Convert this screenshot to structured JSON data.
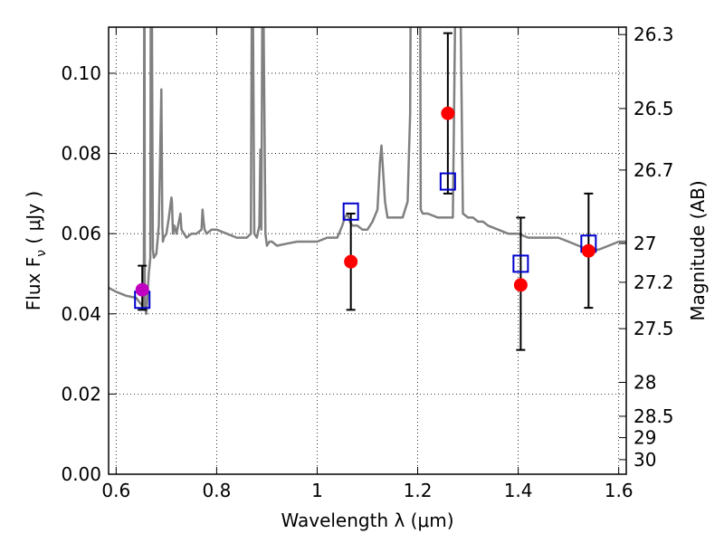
{
  "chart_data": {
    "type": "scatter",
    "xlabel": "Wavelength  λ (μm)",
    "ylabel": "Flux  F",
    "ylabel_sub": "ν",
    "ylabel_unit": "  ( μJy )",
    "y2label": "Magnitude (AB)",
    "xlim": [
      0.585,
      1.615
    ],
    "ylim": [
      0.0,
      0.1115
    ],
    "grid": true,
    "grid_style": "dotted",
    "x_ticks": [
      {
        "value": 0.6,
        "label": "0.6"
      },
      {
        "value": 0.8,
        "label": "0.8"
      },
      {
        "value": 1.0,
        "label": "1"
      },
      {
        "value": 1.2,
        "label": "1.2"
      },
      {
        "value": 1.4,
        "label": "1.4"
      },
      {
        "value": 1.6,
        "label": "1.6"
      }
    ],
    "y_ticks": [
      {
        "value": 0.0,
        "label": "0.00"
      },
      {
        "value": 0.02,
        "label": "0.02"
      },
      {
        "value": 0.04,
        "label": "0.04"
      },
      {
        "value": 0.06,
        "label": "0.06"
      },
      {
        "value": 0.08,
        "label": "0.08"
      },
      {
        "value": 0.1,
        "label": "0.10"
      }
    ],
    "y2_ticks": [
      {
        "mag": 26.3,
        "label": "26.3"
      },
      {
        "mag": 26.5,
        "label": "26.5"
      },
      {
        "mag": 26.7,
        "label": "26.7"
      },
      {
        "mag": 27.0,
        "label": "27"
      },
      {
        "mag": 27.2,
        "label": "27.2"
      },
      {
        "mag": 27.5,
        "label": "27.5"
      },
      {
        "mag": 28.0,
        "label": "28"
      },
      {
        "mag": 28.5,
        "label": "28.5"
      },
      {
        "mag": 29.0,
        "label": "29"
      },
      {
        "mag": 30.0,
        "label": "30"
      }
    ],
    "colors": {
      "model": "#808080",
      "observed": "#ff0000",
      "model_photometry": "#0000cc",
      "highlight": "#c000c0",
      "errorbar": "#000000"
    },
    "series": [
      {
        "kind": "line",
        "x": [
          0.585,
          0.6,
          0.62,
          0.64,
          0.652,
          0.655,
          0.656,
          0.6565,
          0.657,
          0.66,
          0.665,
          0.668,
          0.669,
          0.671,
          0.673,
          0.675,
          0.68,
          0.685,
          0.69,
          0.692,
          0.693,
          0.695,
          0.7,
          0.705,
          0.71,
          0.711,
          0.713,
          0.716,
          0.72,
          0.725,
          0.728,
          0.73,
          0.735,
          0.74,
          0.75,
          0.76,
          0.77,
          0.772,
          0.774,
          0.776,
          0.78,
          0.79,
          0.8,
          0.82,
          0.84,
          0.86,
          0.868,
          0.87,
          0.872,
          0.875,
          0.88,
          0.885,
          0.887,
          0.889,
          0.891,
          0.893,
          0.897,
          0.899,
          0.9,
          0.905,
          0.91,
          0.92,
          0.94,
          0.96,
          0.98,
          1.0,
          1.02,
          1.04,
          1.05,
          1.055,
          1.06,
          1.065,
          1.07,
          1.08,
          1.09,
          1.1,
          1.11,
          1.12,
          1.125,
          1.128,
          1.131,
          1.135,
          1.14,
          1.15,
          1.16,
          1.17,
          1.18,
          1.185,
          1.186,
          1.19,
          1.195,
          1.2,
          1.205,
          1.206,
          1.21,
          1.22,
          1.24,
          1.26,
          1.27,
          1.275,
          1.28,
          1.281,
          1.285,
          1.29,
          1.3,
          1.31,
          1.32,
          1.33,
          1.34,
          1.36,
          1.38,
          1.4,
          1.42,
          1.44,
          1.46,
          1.48,
          1.5,
          1.52,
          1.54,
          1.56,
          1.58,
          1.6,
          1.615
        ],
        "y": [
          0.0465,
          0.0455,
          0.0445,
          0.044,
          0.042,
          0.0415,
          0.12,
          0.12,
          0.042,
          0.04,
          0.05,
          0.054,
          0.12,
          0.12,
          0.056,
          0.054,
          0.055,
          0.062,
          0.096,
          0.062,
          0.058,
          0.059,
          0.06,
          0.064,
          0.069,
          0.068,
          0.06,
          0.062,
          0.06,
          0.063,
          0.065,
          0.061,
          0.06,
          0.059,
          0.06,
          0.06,
          0.061,
          0.066,
          0.063,
          0.061,
          0.06,
          0.061,
          0.061,
          0.06,
          0.059,
          0.059,
          0.06,
          0.12,
          0.12,
          0.06,
          0.059,
          0.062,
          0.081,
          0.061,
          0.12,
          0.12,
          0.06,
          0.058,
          0.057,
          0.058,
          0.058,
          0.057,
          0.0575,
          0.058,
          0.058,
          0.058,
          0.059,
          0.059,
          0.062,
          0.064,
          0.065,
          0.063,
          0.062,
          0.062,
          0.061,
          0.061,
          0.063,
          0.066,
          0.078,
          0.082,
          0.076,
          0.068,
          0.064,
          0.064,
          0.064,
          0.064,
          0.068,
          0.09,
          0.12,
          0.12,
          0.12,
          0.12,
          0.12,
          0.066,
          0.065,
          0.065,
          0.064,
          0.064,
          0.064,
          0.12,
          0.12,
          0.12,
          0.12,
          0.065,
          0.064,
          0.064,
          0.063,
          0.063,
          0.062,
          0.061,
          0.06,
          0.06,
          0.059,
          0.059,
          0.059,
          0.059,
          0.058,
          0.057,
          0.056,
          0.056,
          0.057,
          0.058,
          0.058
        ]
      },
      {
        "kind": "points",
        "marker": "circle",
        "x": [
          0.652,
          1.067,
          1.26,
          1.405,
          1.54
        ],
        "y": [
          0.046,
          0.053,
          0.09,
          0.0472,
          0.0557
        ],
        "yerr_low": [
          0.041,
          0.041,
          0.07,
          0.031,
          0.0415
        ],
        "yerr_high": [
          0.052,
          0.065,
          0.11,
          0.064,
          0.07
        ]
      },
      {
        "kind": "points",
        "marker": "square",
        "x": [
          0.652,
          1.067,
          1.26,
          1.405,
          1.54
        ],
        "y": [
          0.0435,
          0.0655,
          0.073,
          0.0525,
          0.0575
        ]
      }
    ]
  }
}
